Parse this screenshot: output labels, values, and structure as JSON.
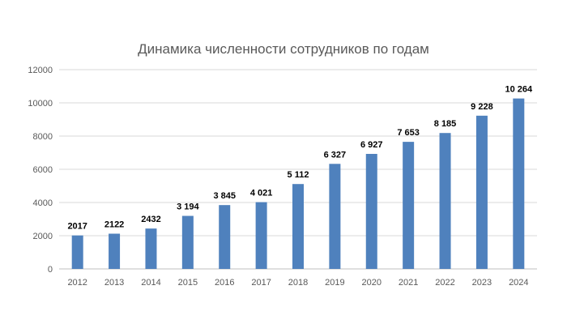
{
  "chart_data": {
    "type": "bar",
    "title": "Динамика численности сотрудников  по годам",
    "xlabel": "",
    "ylabel": "",
    "categories": [
      "2012",
      "2013",
      "2014",
      "2015",
      "2016",
      "2017",
      "2018",
      "2019",
      "2020",
      "2021",
      "2022",
      "2023",
      "2024"
    ],
    "values": [
      2017,
      2122,
      2432,
      3194,
      3845,
      4021,
      5112,
      6327,
      6927,
      7653,
      8185,
      9228,
      10264
    ],
    "data_labels": [
      "2017",
      "2122",
      "2432",
      "3 194",
      "3 845",
      "4 021",
      "5 112",
      "6 327",
      "6 927",
      "7 653",
      "8 185",
      "9 228",
      "10 264"
    ],
    "ylim": [
      0,
      12000
    ],
    "y_ticks": [
      "0",
      "2000",
      "4000",
      "6000",
      "8000",
      "10000",
      "12000"
    ],
    "y_tick_values": [
      0,
      2000,
      4000,
      6000,
      8000,
      10000,
      12000
    ],
    "grid": true,
    "legend": "none",
    "bar_color": "#4f81bd"
  }
}
